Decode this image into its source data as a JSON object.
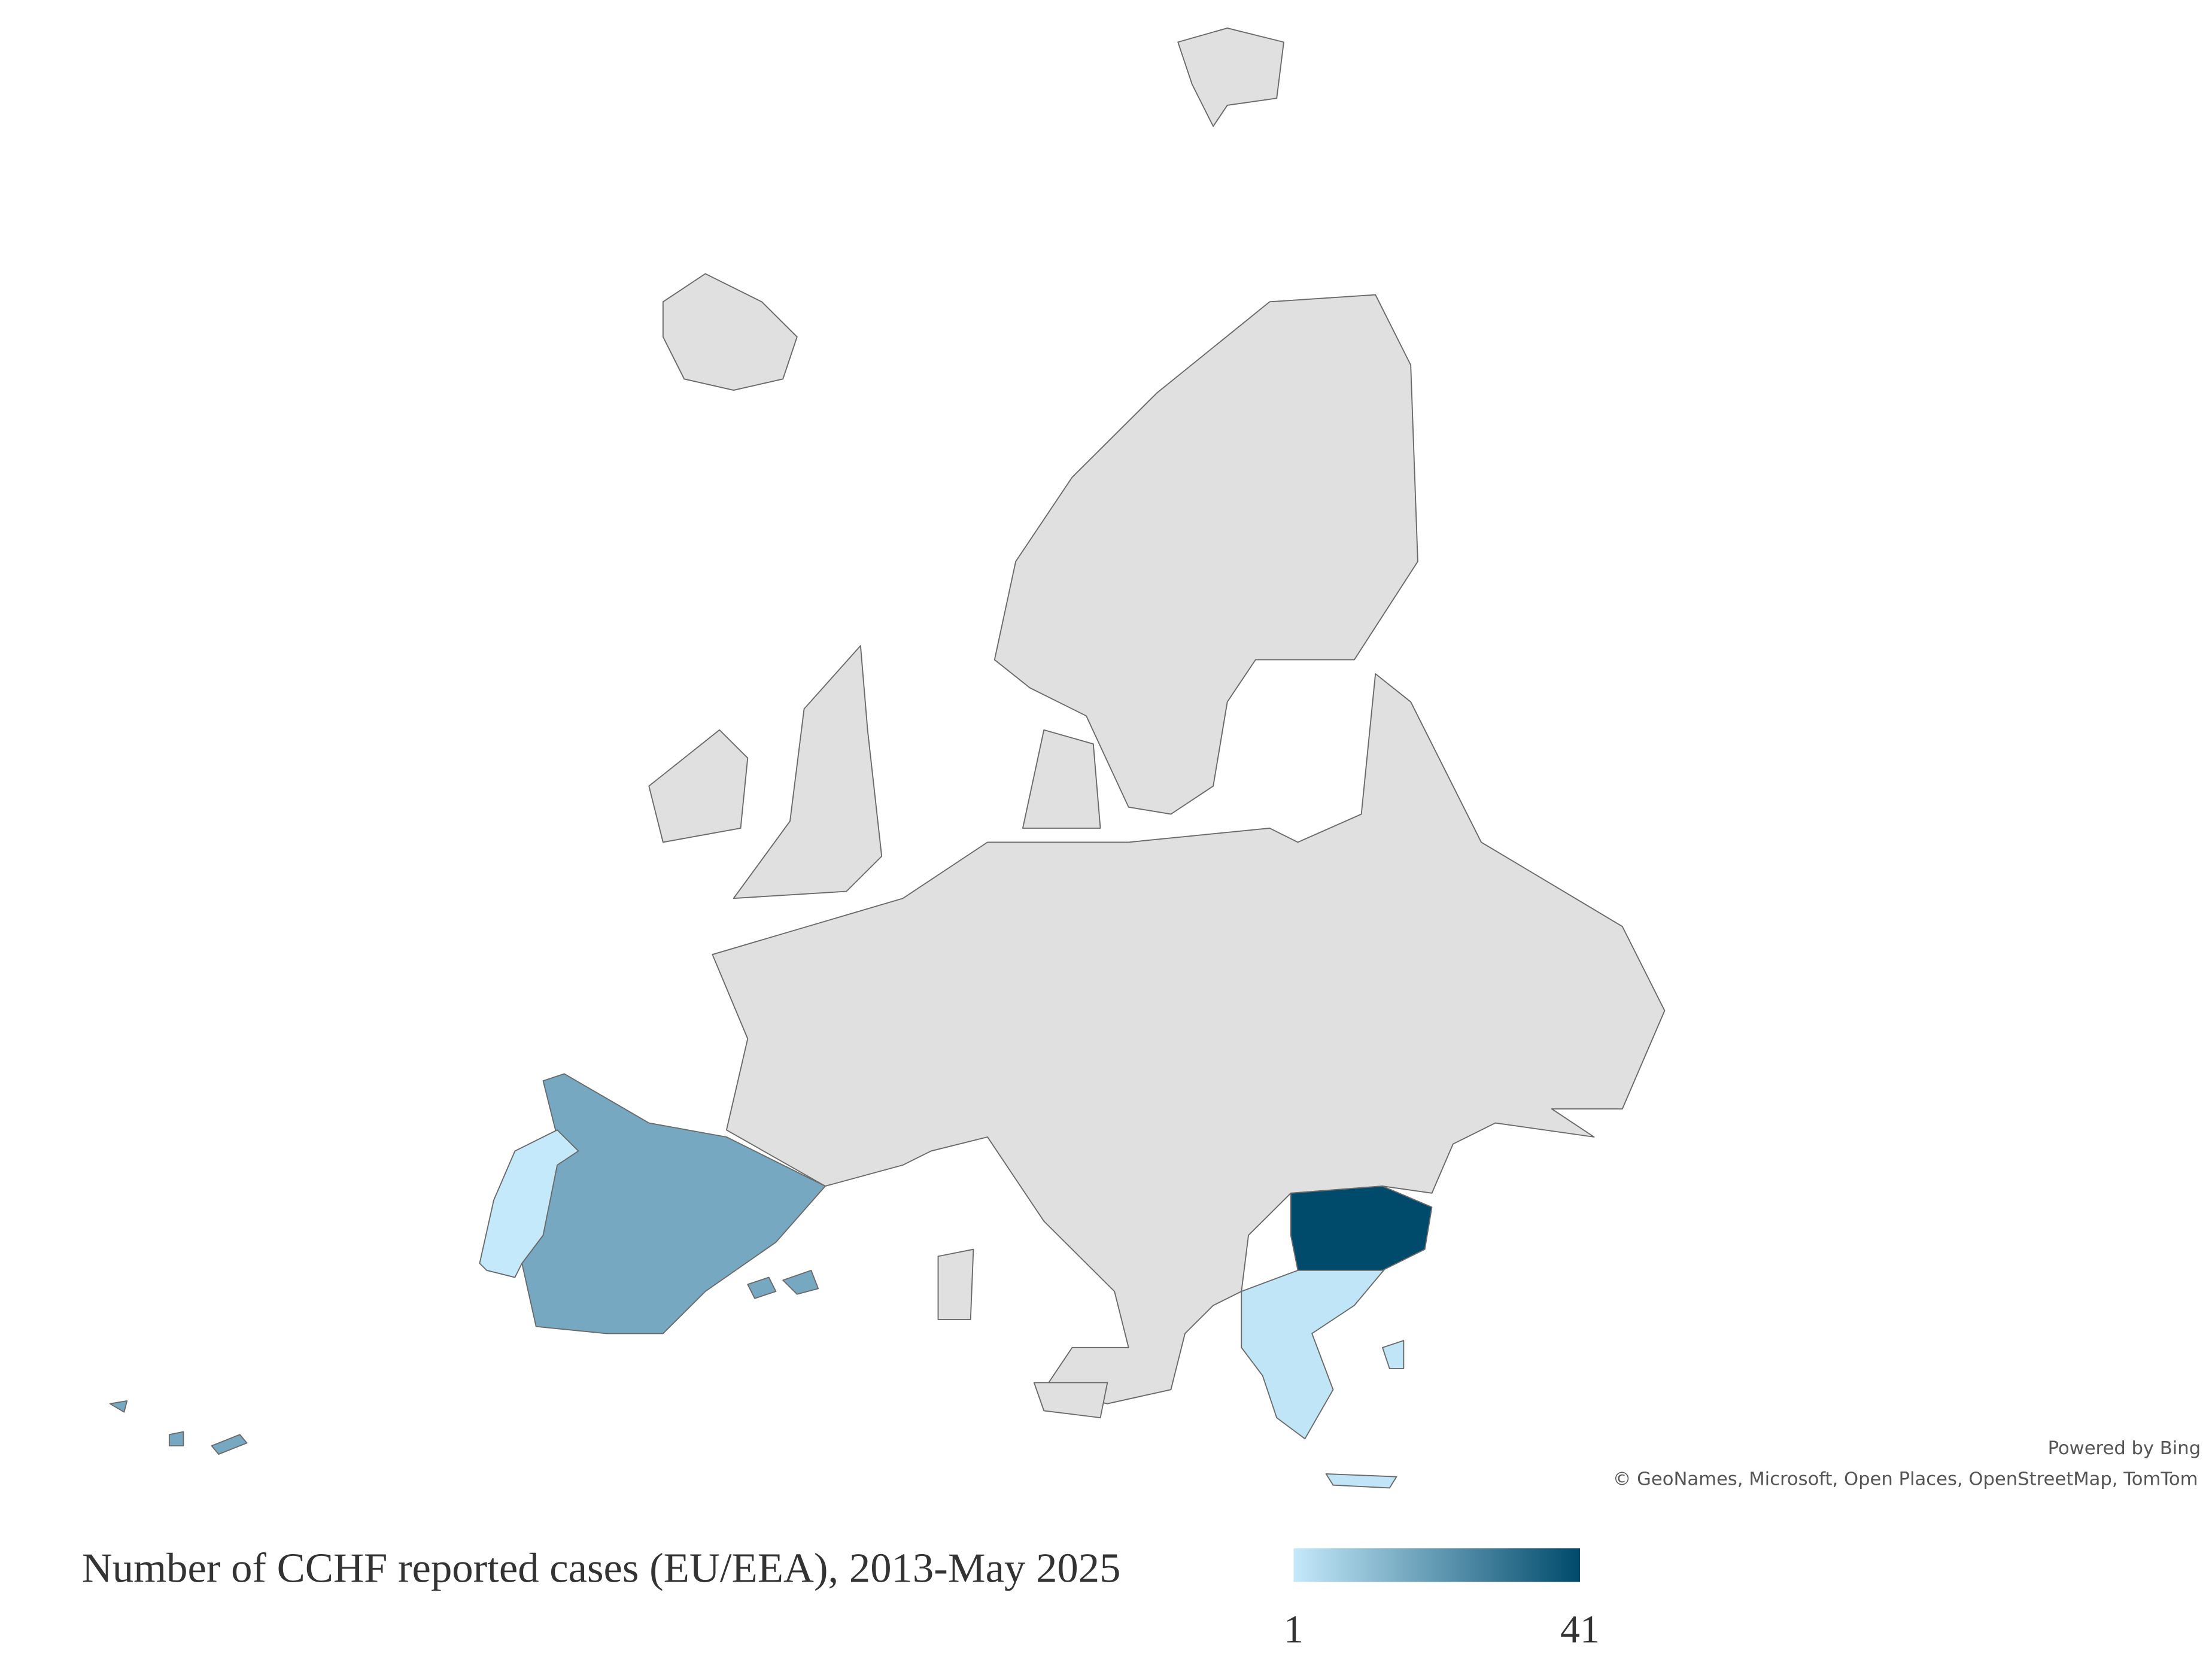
{
  "chart_data": {
    "type": "choropleth",
    "values": [
      17,
      1,
      2,
      41
    ],
    "legend": {
      "title": "Number of CCHF reported cases (EU/EEA), 2013-May 2025",
      "min": 1,
      "max": 41,
      "colors": [
        "#c4e9fa",
        "#004a6b"
      ]
    },
    "attribution": {
      "powered": "Powered by Bing",
      "sources": "© GeoNames, Microsoft, Open Places, OpenStreetMap, TomTom"
    }
  }
}
